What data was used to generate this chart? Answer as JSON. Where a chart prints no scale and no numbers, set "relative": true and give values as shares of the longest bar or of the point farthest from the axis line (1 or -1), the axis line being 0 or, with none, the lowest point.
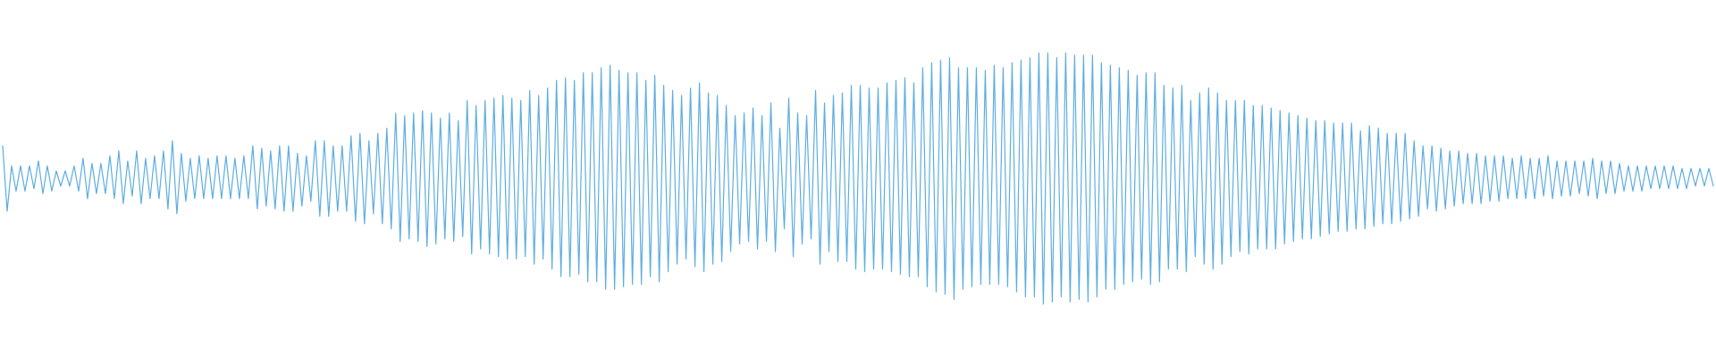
{
  "chart_data": {
    "type": "line",
    "relative": true,
    "color": "#5dade2",
    "marker": "none",
    "categories": [
      null,
      null,
      null,
      null,
      null,
      null,
      null,
      null,
      null,
      null,
      null,
      null,
      null,
      null,
      null,
      null,
      null,
      null,
      null,
      null,
      null,
      null,
      null,
      null,
      null,
      null,
      null,
      null,
      null,
      null,
      null,
      null,
      null,
      null,
      null,
      null,
      null,
      null,
      null,
      null,
      null,
      null,
      null,
      null,
      null,
      null,
      null,
      null,
      null,
      null,
      null,
      null,
      null,
      null,
      null,
      null,
      null,
      null,
      null,
      null,
      null,
      null,
      null,
      null,
      null,
      null,
      null,
      null,
      null,
      null,
      null,
      null,
      null,
      null,
      null,
      null,
      null,
      null,
      null,
      null,
      null,
      null,
      null,
      null,
      null,
      null,
      null,
      null,
      null,
      null,
      null,
      null,
      null,
      null,
      null,
      null,
      null,
      null,
      null,
      null,
      null,
      null,
      null,
      null,
      null,
      null,
      null,
      null,
      null,
      null,
      null,
      null,
      null,
      null,
      null,
      null,
      null,
      null,
      null,
      null,
      null,
      null,
      null,
      null,
      null,
      null,
      null,
      null,
      null,
      null,
      null,
      null,
      null,
      null,
      null,
      null,
      null,
      null,
      null,
      null,
      null,
      null,
      null,
      null,
      null,
      null,
      null,
      null,
      null,
      null,
      null,
      null,
      null,
      null,
      null,
      null,
      null,
      null,
      null,
      null,
      null,
      null,
      null,
      null,
      null,
      null,
      null,
      null,
      null,
      null,
      null,
      null,
      null,
      null,
      null,
      null,
      null,
      null,
      null,
      null,
      null,
      null,
      null,
      null,
      null,
      null,
      null,
      null,
      null,
      null,
      null,
      null,
      null,
      null,
      null,
      null,
      null,
      null,
      null,
      null,
      null,
      null,
      null,
      null,
      null,
      null,
      null,
      null,
      null,
      null,
      null,
      null,
      null,
      null,
      null,
      null,
      null,
      null,
      null,
      null,
      null,
      null,
      null,
      null,
      null,
      null,
      null,
      null,
      null,
      null,
      null,
      null,
      null,
      null,
      null,
      null,
      null,
      null,
      null,
      null,
      null,
      null,
      null,
      null,
      null,
      null,
      null,
      null,
      null,
      null,
      null,
      null,
      null,
      null,
      null,
      null,
      null,
      null,
      null,
      null,
      null,
      null,
      null,
      null,
      null,
      null,
      null,
      null,
      null,
      null,
      null,
      null,
      null,
      null,
      null,
      null,
      null,
      null,
      null,
      null,
      null,
      null,
      null,
      null,
      null,
      null,
      null,
      null,
      null,
      null,
      null,
      null,
      null,
      null,
      null,
      null,
      null,
      null,
      null,
      null,
      null,
      null,
      null,
      null,
      null,
      null,
      null,
      null,
      null,
      null,
      null,
      null,
      null,
      null,
      null,
      null,
      null,
      null,
      null,
      null,
      null,
      null,
      null,
      null,
      null,
      null,
      null,
      null,
      null,
      null,
      null,
      null,
      null,
      null,
      null,
      null,
      null,
      null,
      null,
      null,
      null,
      null,
      null,
      null,
      null,
      null,
      null,
      null,
      null,
      null,
      null,
      null,
      null,
      null,
      null,
      null,
      null,
      null,
      null,
      null,
      null,
      null,
      null,
      null,
      null,
      null,
      null,
      null,
      null,
      null,
      null,
      null,
      null,
      null,
      null,
      null,
      null,
      null,
      null,
      null,
      null,
      null,
      null,
      null
    ],
    "values": [
      0.63,
      0.37,
      0.55,
      0.45,
      0.55,
      0.45,
      0.55,
      0.46,
      0.57,
      0.44,
      0.55,
      0.45,
      0.53,
      0.47,
      0.53,
      0.47,
      0.55,
      0.45,
      0.58,
      0.42,
      0.56,
      0.44,
      0.56,
      0.44,
      0.59,
      0.42,
      0.61,
      0.4,
      0.57,
      0.43,
      0.61,
      0.4,
      0.58,
      0.42,
      0.59,
      0.42,
      0.61,
      0.38,
      0.65,
      0.36,
      0.6,
      0.41,
      0.58,
      0.42,
      0.59,
      0.42,
      0.58,
      0.42,
      0.59,
      0.42,
      0.59,
      0.42,
      0.58,
      0.42,
      0.59,
      0.42,
      0.63,
      0.38,
      0.62,
      0.39,
      0.61,
      0.38,
      0.63,
      0.37,
      0.63,
      0.37,
      0.6,
      0.39,
      0.59,
      0.41,
      0.65,
      0.35,
      0.65,
      0.35,
      0.63,
      0.37,
      0.63,
      0.37,
      0.67,
      0.33,
      0.68,
      0.32,
      0.65,
      0.36,
      0.68,
      0.32,
      0.7,
      0.3,
      0.76,
      0.25,
      0.75,
      0.26,
      0.76,
      0.25,
      0.77,
      0.23,
      0.76,
      0.24,
      0.74,
      0.26,
      0.76,
      0.25,
      0.73,
      0.27,
      0.81,
      0.2,
      0.79,
      0.22,
      0.81,
      0.2,
      0.82,
      0.19,
      0.83,
      0.18,
      0.82,
      0.18,
      0.81,
      0.19,
      0.85,
      0.16,
      0.83,
      0.18,
      0.86,
      0.14,
      0.89,
      0.11,
      0.9,
      0.11,
      0.89,
      0.12,
      0.92,
      0.09,
      0.92,
      0.09,
      0.94,
      0.06,
      0.95,
      0.06,
      0.93,
      0.07,
      0.92,
      0.08,
      0.92,
      0.08,
      0.89,
      0.11,
      0.91,
      0.09,
      0.87,
      0.13,
      0.85,
      0.16,
      0.83,
      0.18,
      0.86,
      0.15,
      0.88,
      0.13,
      0.84,
      0.16,
      0.83,
      0.17,
      0.79,
      0.21,
      0.75,
      0.24,
      0.76,
      0.25,
      0.78,
      0.22,
      0.75,
      0.25,
      0.8,
      0.21,
      0.7,
      0.3,
      0.82,
      0.19,
      0.76,
      0.24,
      0.75,
      0.26,
      0.85,
      0.16,
      0.8,
      0.21,
      0.83,
      0.17,
      0.84,
      0.17,
      0.87,
      0.14,
      0.87,
      0.13,
      0.86,
      0.14,
      0.86,
      0.14,
      0.88,
      0.13,
      0.89,
      0.12,
      0.9,
      0.11,
      0.88,
      0.11,
      0.94,
      0.07,
      0.96,
      0.05,
      0.97,
      0.04,
      0.98,
      0.02,
      0.94,
      0.06,
      0.94,
      0.07,
      0.94,
      0.08,
      0.93,
      0.08,
      0.95,
      0.08,
      0.94,
      0.07,
      0.96,
      0.05,
      0.97,
      0.03,
      0.98,
      0.03,
      1,
      0,
      1,
      0.01,
      0.98,
      0.03,
      1,
      0.01,
      0.99,
      0.02,
      0.99,
      0.01,
      0.99,
      0.03,
      0.96,
      0.06,
      0.95,
      0.06,
      0.94,
      0.08,
      0.93,
      0.09,
      0.91,
      0.1,
      0.92,
      0.08,
      0.92,
      0.09,
      0.87,
      0.14,
      0.86,
      0.14,
      0.87,
      0.13,
      0.81,
      0.19,
      0.84,
      0.16,
      0.86,
      0.14,
      0.84,
      0.16,
      0.81,
      0.19,
      0.81,
      0.21,
      0.81,
      0.2,
      0.79,
      0.22,
      0.79,
      0.22,
      0.78,
      0.22,
      0.77,
      0.24,
      0.76,
      0.25,
      0.75,
      0.26,
      0.74,
      0.26,
      0.73,
      0.27,
      0.73,
      0.28,
      0.72,
      0.29,
      0.72,
      0.29,
      0.72,
      0.3,
      0.69,
      0.3,
      0.71,
      0.31,
      0.7,
      0.32,
      0.68,
      0.32,
      0.68,
      0.33,
      0.68,
      0.34,
      0.65,
      0.35,
      0.63,
      0.38,
      0.63,
      0.37,
      0.62,
      0.38,
      0.61,
      0.39,
      0.61,
      0.4,
      0.6,
      0.4,
      0.6,
      0.4,
      0.59,
      0.41,
      0.59,
      0.41,
      0.59,
      0.42,
      0.58,
      0.42,
      0.59,
      0.42,
      0.58,
      0.42,
      0.58,
      0.43,
      0.59,
      0.42,
      0.57,
      0.43,
      0.57,
      0.43,
      0.57,
      0.44,
      0.57,
      0.43,
      0.58,
      0.42,
      0.57,
      0.44,
      0.57,
      0.44,
      0.56,
      0.45,
      0.55,
      0.45,
      0.55,
      0.45,
      0.55,
      0.46,
      0.55,
      0.46,
      0.55,
      0.46,
      0.55,
      0.46,
      0.54,
      0.46,
      0.54,
      0.47,
      0.54,
      0.47,
      0.54,
      0.47
    ]
  }
}
